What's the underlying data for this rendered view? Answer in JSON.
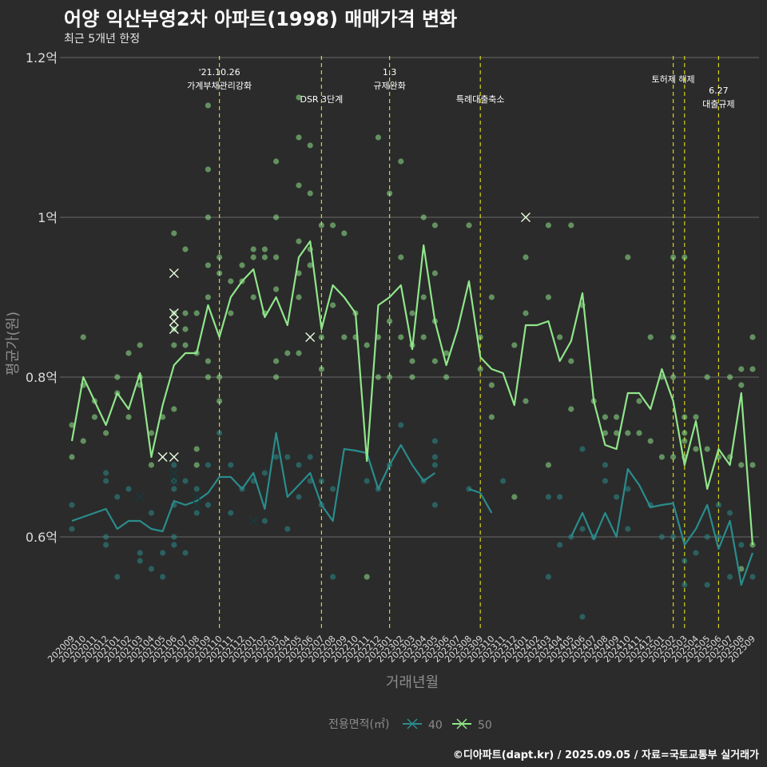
{
  "chart_data": {
    "type": "line",
    "title": "어양 익산부영2차 아파트(1998) 매매가격 변화",
    "subtitle": "최근 5개년 한정",
    "xlabel": "거래년월",
    "ylabel": "평균가(원)",
    "caption": "©디아파트(dapt.kr) / 2025.09.05 / 자료=국토교통부 실거래가",
    "ylim": [
      0.475,
      1.2
    ],
    "y_ticks": [
      {
        "value": 0.6,
        "label": "0.6억"
      },
      {
        "value": 0.8,
        "label": "0.8억"
      },
      {
        "value": 1.0,
        "label": "1억"
      },
      {
        "value": 1.2,
        "label": "1.2억"
      }
    ],
    "grid": true,
    "categories": [
      "202009",
      "202010",
      "202011",
      "202012",
      "202101",
      "202102",
      "202103",
      "202104",
      "202105",
      "202106",
      "202107",
      "202108",
      "202109",
      "202110",
      "202111",
      "202112",
      "202201",
      "202202",
      "202203",
      "202204",
      "202205",
      "202206",
      "202207",
      "202208",
      "202209",
      "202210",
      "202211",
      "202212",
      "202301",
      "202302",
      "202303",
      "202304",
      "202305",
      "202306",
      "202307",
      "202308",
      "202309",
      "202310",
      "202311",
      "202312",
      "202401",
      "202402",
      "202403",
      "202404",
      "202405",
      "202406",
      "202407",
      "202408",
      "202409",
      "202410",
      "202411",
      "202412",
      "202501",
      "202502",
      "202503",
      "202504",
      "202505",
      "202506",
      "202507",
      "202508",
      "202509"
    ],
    "legend": {
      "title": "전용면적(㎡)",
      "position": "bottom"
    },
    "series": [
      {
        "name": "40",
        "color": "#2a8c8c",
        "values": [
          0.62,
          0.625,
          0.63,
          0.635,
          0.61,
          0.62,
          0.62,
          0.61,
          0.607,
          0.645,
          0.64,
          0.645,
          0.655,
          0.675,
          0.675,
          0.66,
          0.68,
          0.635,
          0.73,
          0.65,
          0.665,
          0.68,
          0.64,
          0.62,
          0.71,
          0.708,
          0.705,
          0.66,
          0.69,
          0.715,
          0.69,
          0.67,
          0.68,
          null,
          null,
          0.66,
          0.655,
          0.63,
          null,
          null,
          null,
          null,
          null,
          null,
          0.6,
          0.63,
          0.597,
          0.63,
          0.6,
          0.685,
          0.665,
          0.637,
          0.64,
          0.642,
          0.59,
          0.61,
          0.64,
          0.585,
          0.62,
          0.54,
          0.58
        ]
      },
      {
        "name": "50",
        "color": "#90e68a",
        "values": [
          0.72,
          0.8,
          0.77,
          0.74,
          0.78,
          0.76,
          0.805,
          0.7,
          0.765,
          0.815,
          0.83,
          0.83,
          0.89,
          0.85,
          0.9,
          0.92,
          0.935,
          0.875,
          0.9,
          0.865,
          0.95,
          0.97,
          0.86,
          0.915,
          0.9,
          0.88,
          0.695,
          0.89,
          0.9,
          0.915,
          0.835,
          0.965,
          0.87,
          0.815,
          0.86,
          0.92,
          0.825,
          0.81,
          0.805,
          0.765,
          0.865,
          0.865,
          0.87,
          0.82,
          0.845,
          0.905,
          0.77,
          0.715,
          0.71,
          0.78,
          0.78,
          0.76,
          0.81,
          0.77,
          0.69,
          0.745,
          0.66,
          0.71,
          0.69,
          0.78,
          0.59
        ]
      }
    ],
    "points": [
      [
        0,
        0.74,
        50
      ],
      [
        0,
        0.7,
        50
      ],
      [
        0,
        0.64,
        40
      ],
      [
        0,
        0.61,
        40
      ],
      [
        1,
        0.85,
        50
      ],
      [
        1,
        0.79,
        50
      ],
      [
        1,
        0.72,
        50
      ],
      [
        2,
        0.77,
        50
      ],
      [
        2,
        0.75,
        50
      ],
      [
        3,
        0.68,
        40
      ],
      [
        3,
        0.67,
        40
      ],
      [
        3,
        0.6,
        40
      ],
      [
        3,
        0.59,
        40
      ],
      [
        3,
        0.73,
        50
      ],
      [
        4,
        0.8,
        50
      ],
      [
        4,
        0.78,
        50
      ],
      [
        4,
        0.65,
        40
      ],
      [
        4,
        0.55,
        40
      ],
      [
        5,
        0.83,
        50
      ],
      [
        5,
        0.75,
        50
      ],
      [
        5,
        0.66,
        40
      ],
      [
        6,
        0.84,
        50
      ],
      [
        6,
        0.8,
        50
      ],
      [
        6,
        0.79,
        50
      ],
      [
        6,
        0.58,
        40
      ],
      [
        6,
        0.57,
        40
      ],
      [
        7,
        0.73,
        50
      ],
      [
        7,
        0.69,
        50
      ],
      [
        7,
        0.63,
        40
      ],
      [
        7,
        0.56,
        40
      ],
      [
        8,
        0.75,
        50
      ],
      [
        8,
        0.58,
        40
      ],
      [
        8,
        0.55,
        40
      ],
      [
        9,
        0.98,
        50
      ],
      [
        9,
        0.88,
        50
      ],
      [
        9,
        0.86,
        50
      ],
      [
        9,
        0.84,
        50
      ],
      [
        9,
        0.76,
        50
      ],
      [
        9,
        0.69,
        40
      ],
      [
        9,
        0.67,
        40
      ],
      [
        9,
        0.66,
        40
      ],
      [
        9,
        0.64,
        40
      ],
      [
        9,
        0.6,
        40
      ],
      [
        9,
        0.59,
        40
      ],
      [
        10,
        0.96,
        50
      ],
      [
        10,
        0.88,
        50
      ],
      [
        10,
        0.86,
        50
      ],
      [
        10,
        0.84,
        50
      ],
      [
        10,
        0.67,
        40
      ],
      [
        10,
        0.58,
        40
      ],
      [
        11,
        0.88,
        50
      ],
      [
        11,
        0.83,
        50
      ],
      [
        11,
        0.71,
        50
      ],
      [
        11,
        0.69,
        50
      ],
      [
        11,
        0.66,
        40
      ],
      [
        11,
        0.63,
        40
      ],
      [
        12,
        1.14,
        50
      ],
      [
        12,
        1.06,
        50
      ],
      [
        12,
        1.0,
        50
      ],
      [
        12,
        0.94,
        50
      ],
      [
        12,
        0.9,
        50
      ],
      [
        12,
        0.82,
        50
      ],
      [
        12,
        0.8,
        50
      ],
      [
        12,
        0.69,
        40
      ],
      [
        12,
        0.64,
        40
      ],
      [
        13,
        0.95,
        50
      ],
      [
        13,
        0.93,
        50
      ],
      [
        13,
        0.8,
        50
      ],
      [
        13,
        0.77,
        50
      ],
      [
        13,
        0.73,
        40
      ],
      [
        14,
        0.92,
        50
      ],
      [
        14,
        0.88,
        50
      ],
      [
        14,
        0.69,
        40
      ],
      [
        14,
        0.63,
        40
      ],
      [
        15,
        0.94,
        50
      ],
      [
        15,
        0.92,
        50
      ],
      [
        15,
        0.66,
        40
      ],
      [
        16,
        0.96,
        50
      ],
      [
        16,
        0.95,
        50
      ],
      [
        16,
        0.9,
        50
      ],
      [
        16,
        0.67,
        40
      ],
      [
        17,
        0.96,
        50
      ],
      [
        17,
        0.95,
        50
      ],
      [
        17,
        0.88,
        50
      ],
      [
        17,
        0.68,
        40
      ],
      [
        17,
        0.62,
        40
      ],
      [
        18,
        1.07,
        50
      ],
      [
        18,
        1.0,
        50
      ],
      [
        18,
        0.95,
        50
      ],
      [
        18,
        0.91,
        50
      ],
      [
        18,
        0.82,
        50
      ],
      [
        18,
        0.8,
        50
      ],
      [
        18,
        0.7,
        40
      ],
      [
        19,
        0.83,
        50
      ],
      [
        19,
        0.7,
        40
      ],
      [
        19,
        0.61,
        40
      ],
      [
        20,
        1.15,
        50
      ],
      [
        20,
        1.1,
        50
      ],
      [
        20,
        1.04,
        50
      ],
      [
        20,
        0.97,
        50
      ],
      [
        20,
        0.93,
        50
      ],
      [
        20,
        0.9,
        50
      ],
      [
        20,
        0.83,
        50
      ],
      [
        20,
        0.69,
        40
      ],
      [
        20,
        0.65,
        40
      ],
      [
        21,
        1.09,
        50
      ],
      [
        21,
        1.03,
        50
      ],
      [
        21,
        0.96,
        50
      ],
      [
        21,
        0.94,
        50
      ],
      [
        21,
        0.7,
        40
      ],
      [
        21,
        0.67,
        40
      ],
      [
        22,
        0.99,
        50
      ],
      [
        22,
        0.85,
        50
      ],
      [
        22,
        0.81,
        50
      ],
      [
        22,
        0.67,
        40
      ],
      [
        22,
        0.64,
        40
      ],
      [
        23,
        0.99,
        50
      ],
      [
        23,
        0.89,
        50
      ],
      [
        23,
        0.66,
        40
      ],
      [
        23,
        0.55,
        40
      ],
      [
        24,
        0.98,
        50
      ],
      [
        24,
        0.85,
        50
      ],
      [
        25,
        0.88,
        50
      ],
      [
        25,
        0.85,
        50
      ],
      [
        26,
        0.84,
        50
      ],
      [
        26,
        0.55,
        50
      ],
      [
        26,
        0.67,
        40
      ],
      [
        27,
        1.1,
        50
      ],
      [
        27,
        0.85,
        50
      ],
      [
        27,
        0.8,
        50
      ],
      [
        27,
        0.66,
        40
      ],
      [
        28,
        1.03,
        50
      ],
      [
        28,
        0.87,
        50
      ],
      [
        28,
        0.8,
        50
      ],
      [
        28,
        0.69,
        40
      ],
      [
        29,
        1.07,
        50
      ],
      [
        29,
        0.95,
        50
      ],
      [
        29,
        0.85,
        50
      ],
      [
        29,
        0.74,
        40
      ],
      [
        30,
        0.88,
        50
      ],
      [
        30,
        0.84,
        50
      ],
      [
        30,
        0.82,
        50
      ],
      [
        30,
        0.8,
        50
      ],
      [
        31,
        1.0,
        50
      ],
      [
        31,
        0.9,
        50
      ],
      [
        31,
        0.85,
        50
      ],
      [
        31,
        0.67,
        40
      ],
      [
        32,
        0.99,
        50
      ],
      [
        32,
        0.93,
        50
      ],
      [
        32,
        0.87,
        50
      ],
      [
        32,
        0.82,
        50
      ],
      [
        32,
        0.72,
        40
      ],
      [
        32,
        0.7,
        40
      ],
      [
        32,
        0.69,
        40
      ],
      [
        32,
        0.64,
        40
      ],
      [
        33,
        0.83,
        50
      ],
      [
        33,
        0.8,
        50
      ],
      [
        35,
        0.99,
        50
      ],
      [
        35,
        0.66,
        40
      ],
      [
        36,
        0.85,
        50
      ],
      [
        36,
        0.81,
        50
      ],
      [
        37,
        0.9,
        50
      ],
      [
        37,
        0.79,
        50
      ],
      [
        37,
        0.75,
        50
      ],
      [
        38,
        0.67,
        40
      ],
      [
        39,
        0.84,
        50
      ],
      [
        39,
        0.65,
        50
      ],
      [
        40,
        0.95,
        50
      ],
      [
        40,
        0.88,
        50
      ],
      [
        40,
        0.77,
        50
      ],
      [
        42,
        0.99,
        50
      ],
      [
        42,
        0.9,
        50
      ],
      [
        42,
        0.69,
        50
      ],
      [
        42,
        0.65,
        40
      ],
      [
        42,
        0.55,
        40
      ],
      [
        43,
        0.85,
        50
      ],
      [
        43,
        0.65,
        40
      ],
      [
        43,
        0.59,
        40
      ],
      [
        44,
        0.99,
        50
      ],
      [
        44,
        0.82,
        50
      ],
      [
        44,
        0.76,
        50
      ],
      [
        44,
        0.6,
        40
      ],
      [
        45,
        0.89,
        50
      ],
      [
        45,
        0.71,
        40
      ],
      [
        45,
        0.61,
        40
      ],
      [
        45,
        0.5,
        40
      ],
      [
        46,
        0.77,
        50
      ],
      [
        46,
        0.6,
        40
      ],
      [
        47,
        0.75,
        50
      ],
      [
        47,
        0.73,
        50
      ],
      [
        47,
        0.69,
        40
      ],
      [
        47,
        0.67,
        40
      ],
      [
        48,
        0.75,
        50
      ],
      [
        48,
        0.73,
        50
      ],
      [
        48,
        0.65,
        40
      ],
      [
        49,
        0.95,
        50
      ],
      [
        49,
        0.73,
        50
      ],
      [
        49,
        0.66,
        40
      ],
      [
        49,
        0.61,
        40
      ],
      [
        50,
        0.73,
        50
      ],
      [
        50,
        0.77,
        50
      ],
      [
        51,
        0.85,
        50
      ],
      [
        51,
        0.72,
        50
      ],
      [
        51,
        0.64,
        40
      ],
      [
        52,
        0.8,
        50
      ],
      [
        52,
        0.7,
        50
      ],
      [
        52,
        0.6,
        40
      ],
      [
        53,
        0.95,
        50
      ],
      [
        53,
        0.85,
        50
      ],
      [
        53,
        0.8,
        50
      ],
      [
        53,
        0.7,
        50
      ],
      [
        53,
        0.6,
        40
      ],
      [
        54,
        0.95,
        50
      ],
      [
        54,
        0.75,
        50
      ],
      [
        54,
        0.73,
        50
      ],
      [
        54,
        0.72,
        50
      ],
      [
        54,
        0.7,
        50
      ],
      [
        54,
        0.57,
        40
      ],
      [
        54,
        0.54,
        40
      ],
      [
        55,
        0.75,
        50
      ],
      [
        55,
        0.71,
        50
      ],
      [
        55,
        0.58,
        40
      ],
      [
        56,
        0.8,
        50
      ],
      [
        56,
        0.71,
        50
      ],
      [
        56,
        0.6,
        40
      ],
      [
        56,
        0.54,
        40
      ],
      [
        57,
        0.7,
        50
      ],
      [
        57,
        0.64,
        40
      ],
      [
        57,
        0.6,
        40
      ],
      [
        58,
        0.8,
        50
      ],
      [
        58,
        0.7,
        50
      ],
      [
        58,
        0.63,
        40
      ],
      [
        58,
        0.55,
        40
      ],
      [
        59,
        0.81,
        50
      ],
      [
        59,
        0.79,
        50
      ],
      [
        59,
        0.69,
        50
      ],
      [
        59,
        0.59,
        40
      ],
      [
        59,
        0.56,
        50
      ],
      [
        60,
        0.85,
        50
      ],
      [
        60,
        0.81,
        50
      ],
      [
        60,
        0.69,
        50
      ],
      [
        60,
        0.59,
        50
      ],
      [
        60,
        0.55,
        40
      ]
    ],
    "x_markers": [
      [
        9,
        0.93,
        50
      ],
      [
        9,
        0.88,
        50
      ],
      [
        9,
        0.87,
        50
      ],
      [
        9,
        0.86,
        50
      ],
      [
        9,
        0.7,
        50
      ],
      [
        8,
        0.7,
        50
      ],
      [
        9,
        0.68,
        40
      ],
      [
        9,
        0.67,
        40
      ],
      [
        6,
        0.65,
        40
      ],
      [
        11,
        0.65,
        40
      ],
      [
        11,
        0.64,
        40
      ],
      [
        16,
        0.62,
        40
      ],
      [
        21,
        0.85,
        50
      ],
      [
        40,
        1.0,
        50
      ]
    ],
    "events": [
      {
        "index": 13,
        "line1": "'21.10.26",
        "line2": "가계부채관리강화"
      },
      {
        "index": 22,
        "line1": "",
        "line2": "DSR 3단계"
      },
      {
        "index": 28,
        "line1": "1.3",
        "line2": "규제완화"
      },
      {
        "index": 36,
        "line1": "",
        "line2": "특례대출축소"
      },
      {
        "index": 53,
        "line1": "",
        "line2": "토허제 해제"
      },
      {
        "index": 54,
        "line1": "",
        "line2": ""
      },
      {
        "index": 57,
        "line1": "6.27",
        "line2": "대출규제"
      }
    ]
  }
}
